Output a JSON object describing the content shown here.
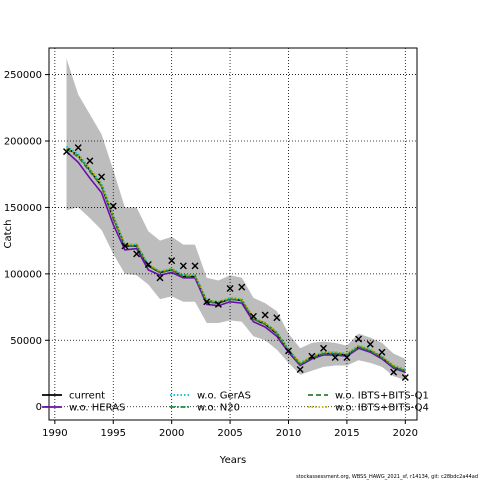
{
  "chart_data": {
    "type": "line",
    "xlabel": "Years",
    "ylabel": "Catch",
    "xlim": [
      1989.5,
      2021.0
    ],
    "ylim": [
      -10000,
      270000
    ],
    "xticks": [
      1990,
      1995,
      2000,
      2005,
      2010,
      2015,
      2020
    ],
    "yticks": [
      0,
      50000,
      100000,
      150000,
      200000,
      250000
    ],
    "grid": true,
    "legend_placement": "bottom",
    "footer": "stockassessment.org, WBSS_HAWG_2021_sf, r14134, git: c28bdc2a44ad",
    "years": [
      1991,
      1992,
      1993,
      1994,
      1995,
      1996,
      1997,
      1998,
      1999,
      2000,
      2001,
      2002,
      2003,
      2004,
      2005,
      2006,
      2007,
      2008,
      2009,
      2010,
      2011,
      2012,
      2013,
      2014,
      2015,
      2016,
      2017,
      2018,
      2019,
      2020
    ],
    "observed": [
      192000,
      195000,
      185000,
      173000,
      151000,
      121000,
      115000,
      107000,
      97000,
      110000,
      106000,
      106000,
      79000,
      77000,
      89000,
      90000,
      68000,
      69000,
      67000,
      42000,
      28000,
      38000,
      44000,
      37000,
      37000,
      51000,
      47000,
      41000,
      26000,
      22000
    ],
    "ci_band": {
      "upper": [
        262000,
        235000,
        220000,
        205000,
        178000,
        150000,
        150000,
        132000,
        125000,
        128000,
        122000,
        122000,
        97000,
        95000,
        99000,
        97000,
        82000,
        78000,
        72000,
        55000,
        44000,
        48000,
        49000,
        48000,
        46000,
        55000,
        52000,
        48000,
        40000,
        36000
      ],
      "lower": [
        148000,
        150000,
        142000,
        133000,
        115000,
        100000,
        99000,
        92000,
        81000,
        83000,
        79000,
        79000,
        63000,
        63000,
        65000,
        64000,
        53000,
        50000,
        43000,
        33000,
        24000,
        27000,
        30000,
        31000,
        31000,
        35000,
        33000,
        30000,
        23000,
        20000
      ]
    },
    "series": [
      {
        "name": "current",
        "color": "#000000",
        "dash": "solid",
        "values": [
          195000,
          189000,
          178000,
          166000,
          142000,
          121000,
          121000,
          106000,
          101000,
          103000,
          98000,
          98000,
          79000,
          78000,
          81000,
          80000,
          66000,
          62000,
          55000,
          42000,
          32000,
          37000,
          40000,
          40000,
          39000,
          45000,
          42000,
          37000,
          30000,
          27000
        ]
      },
      {
        "name": "w.o. HERAS",
        "color": "#6a0dad",
        "dash": "solid",
        "values": [
          192000,
          184000,
          172000,
          161000,
          137000,
          118000,
          119000,
          103000,
          99000,
          101000,
          97000,
          97000,
          77000,
          76000,
          79000,
          78000,
          64000,
          60000,
          53000,
          41000,
          31000,
          36000,
          39000,
          39000,
          38000,
          44000,
          41000,
          36000,
          29000,
          26000
        ]
      },
      {
        "name": "w.o. GerAS",
        "color": "#00bcd4",
        "dash": "dotted",
        "values": [
          196000,
          190000,
          179000,
          168000,
          144000,
          122000,
          122000,
          107000,
          102000,
          104000,
          99000,
          99000,
          80000,
          79000,
          82000,
          81000,
          67000,
          63000,
          56000,
          43000,
          33000,
          38000,
          41000,
          41000,
          40000,
          46000,
          43000,
          38000,
          31000,
          28000
        ]
      },
      {
        "name": "w.o. N20",
        "color": "#1e8c3a",
        "dash": "dashdot",
        "values": [
          195000,
          189000,
          178000,
          167000,
          143000,
          122000,
          122000,
          107000,
          101000,
          103000,
          99000,
          99000,
          80000,
          79000,
          81000,
          80000,
          66000,
          63000,
          56000,
          43000,
          32000,
          37000,
          40000,
          40000,
          39000,
          45000,
          42000,
          37000,
          30000,
          27000
        ]
      },
      {
        "name": "w.o. IBTS+BITS-Q1",
        "color": "#2e7d32",
        "dash": "dashed",
        "values": [
          194000,
          188000,
          177000,
          166000,
          142000,
          121000,
          121000,
          106000,
          101000,
          103000,
          98000,
          98000,
          79000,
          78000,
          81000,
          80000,
          66000,
          62000,
          55000,
          42000,
          32000,
          37000,
          40000,
          40000,
          39000,
          45000,
          42000,
          37000,
          30000,
          27000
        ]
      },
      {
        "name": "w.o. IBTS+BITS-Q4",
        "color": "#c8b400",
        "dash": "dotted",
        "values": [
          195000,
          189000,
          179000,
          167000,
          143000,
          122000,
          122000,
          107000,
          102000,
          104000,
          99000,
          99000,
          80000,
          79000,
          82000,
          81000,
          67000,
          63000,
          56000,
          43000,
          33000,
          38000,
          41000,
          41000,
          40000,
          46000,
          43000,
          38000,
          31000,
          28000
        ]
      }
    ]
  }
}
